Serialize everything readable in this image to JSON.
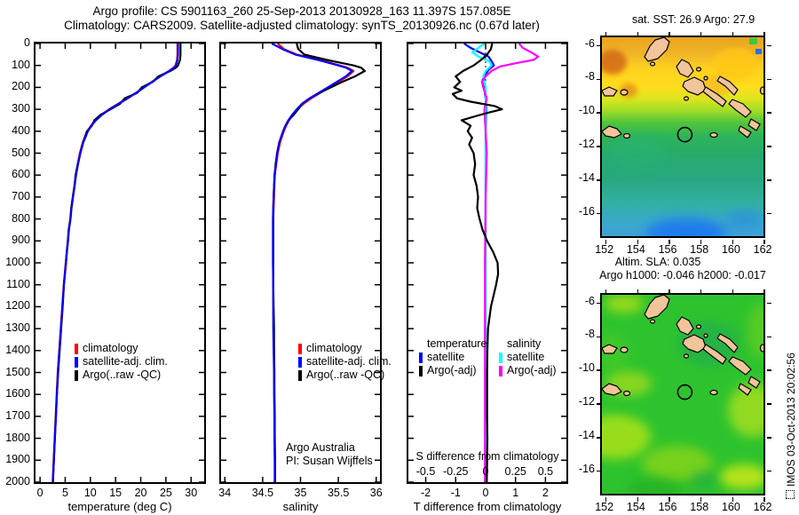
{
  "title": {
    "line1": "Argo profile: CS 5901163_260 25-Sep-2013 20130928_163 11.397S 157.085E",
    "line2": "Climatology: CARS2009. Satellite-adjusted climatology: synTS_20130926.nc (0.67d later)"
  },
  "watermark": "IMOS 03-Oct-2013 20:02:56",
  "colors": {
    "climatology": "#ff0000",
    "satellite_adjusted": "#0000ff",
    "argo_raw": "#000000",
    "satellite_salinity": "#00ffff",
    "argo_salinity_adj": "#ff00ff",
    "land": "#f2c49a"
  },
  "chart_data": {
    "type": "line",
    "panels": [
      {
        "id": "temperature-profile",
        "xlabel": "temperature (deg C)",
        "xlim": [
          -0.9,
          32.6
        ],
        "xticks": [
          0,
          5,
          10,
          15,
          20,
          25,
          30
        ],
        "ylim": [
          0,
          2000
        ],
        "yticks": [
          0,
          100,
          200,
          300,
          400,
          500,
          600,
          700,
          800,
          900,
          1000,
          1100,
          1200,
          1300,
          1400,
          1500,
          1600,
          1700,
          1800,
          1900,
          2000
        ],
        "show_ylabels": true,
        "depths": [
          0,
          25,
          50,
          75,
          100,
          110,
          125,
          150,
          175,
          200,
          225,
          250,
          275,
          300,
          325,
          350,
          375,
          400,
          450,
          500,
          550,
          600,
          650,
          700,
          750,
          800,
          850,
          900,
          950,
          1000,
          1100,
          1200,
          1300,
          1400,
          1500,
          1600,
          1700,
          1800,
          1900,
          2000
        ],
        "legends": [
          {
            "items": [
              {
                "label": "climatology",
                "color": "#ff0000"
              },
              {
                "label": "satellite-adj. clim.",
                "color": "#0000ff"
              },
              {
                "label": "Argo(..raw -QC)",
                "color": "#000000"
              }
            ]
          }
        ],
        "series": [
          {
            "name": "climatology",
            "color": "#ff0000",
            "values": [
              27.3,
              27.3,
              27.3,
              27.2,
              26.9,
              26.5,
              25.6,
              23.8,
              22.2,
              20.6,
              19.0,
              17.3,
              15.5,
              13.7,
              12.2,
              11.0,
              10.1,
              9.4,
              8.5,
              7.9,
              7.5,
              7.1,
              6.8,
              6.5,
              6.2,
              6.0,
              5.7,
              5.5,
              5.3,
              5.1,
              4.7,
              4.4,
              4.1,
              3.8,
              3.5,
              3.3,
              3.1,
              2.9,
              2.7,
              2.5
            ]
          },
          {
            "name": "Argo(..raw -QC)",
            "color": "#000000",
            "values": [
              27.9,
              27.9,
              27.9,
              27.8,
              27.4,
              27.0,
              25.9,
              23.5,
              22.4,
              20.2,
              19.3,
              16.8,
              15.9,
              14.0,
              12.0,
              10.8,
              10.3,
              9.3,
              8.55,
              8.0,
              7.5,
              7.05,
              6.85,
              6.5,
              6.2,
              6.05,
              5.7,
              5.55,
              5.3,
              5.15,
              4.75,
              4.5,
              4.2,
              3.9,
              3.6,
              3.35,
              3.15,
              2.95,
              2.75,
              2.55
            ]
          },
          {
            "name": "satellite-adj. clim.",
            "color": "#0000ff",
            "values": [
              27.4,
              27.4,
              27.4,
              27.3,
              27.0,
              26.6,
              25.7,
              23.9,
              22.3,
              20.7,
              19.1,
              17.4,
              15.6,
              13.8,
              12.3,
              11.1,
              10.2,
              9.5,
              8.6,
              8.0,
              7.55,
              7.15,
              6.85,
              6.55,
              6.25,
              6.05,
              5.75,
              5.55,
              5.35,
              5.15,
              4.75,
              4.45,
              4.15,
              3.85,
              3.55,
              3.35,
              3.15,
              2.95,
              2.75,
              2.55
            ]
          }
        ]
      },
      {
        "id": "salinity-profile",
        "xlabel": "salinity",
        "xlim": [
          33.95,
          36.05
        ],
        "xticks": [
          34,
          34.5,
          35,
          35.5,
          36
        ],
        "ylim": [
          0,
          2000
        ],
        "yticks": [
          0,
          100,
          200,
          300,
          400,
          500,
          600,
          700,
          800,
          900,
          1000,
          1100,
          1200,
          1300,
          1400,
          1500,
          1600,
          1700,
          1800,
          1900,
          2000
        ],
        "show_ylabels": false,
        "depths": [
          0,
          25,
          50,
          75,
          100,
          110,
          125,
          150,
          175,
          200,
          225,
          250,
          275,
          300,
          325,
          350,
          375,
          400,
          450,
          500,
          550,
          600,
          650,
          700,
          750,
          800,
          850,
          900,
          950,
          1000,
          1100,
          1200,
          1300,
          1400,
          1500,
          1600,
          1700,
          1800,
          1900,
          2000
        ],
        "annotation": [
          "Argo Australia",
          "PI: Susan Wijffels"
        ],
        "legends": [
          {
            "items": [
              {
                "label": "climatology",
                "color": "#ff0000"
              },
              {
                "label": "satellite-adj. clim.",
                "color": "#0000ff"
              },
              {
                "label": "Argo(..raw -QC)",
                "color": "#000000"
              }
            ]
          }
        ],
        "series": [
          {
            "name": "climatology",
            "color": "#ff0000",
            "values": [
              34.7,
              34.78,
              34.95,
              35.25,
              35.52,
              35.62,
              35.7,
              35.62,
              35.5,
              35.38,
              35.26,
              35.14,
              35.04,
              34.96,
              34.9,
              34.85,
              34.81,
              34.78,
              34.73,
              34.7,
              34.68,
              34.66,
              34.655,
              34.65,
              34.645,
              34.64,
              34.64,
              34.64,
              34.64,
              34.64,
              34.64,
              34.64,
              34.645,
              34.65,
              34.65,
              34.655,
              34.655,
              34.66,
              34.66,
              34.66
            ]
          },
          {
            "name": "Argo(..raw -QC)",
            "color": "#000000",
            "values": [
              34.95,
              34.97,
              35.05,
              35.35,
              35.7,
              35.8,
              35.85,
              35.72,
              35.55,
              35.4,
              35.25,
              35.12,
              35.02,
              34.97,
              34.91,
              34.84,
              34.8,
              34.77,
              34.72,
              34.69,
              34.67,
              34.66,
              34.65,
              34.645,
              34.64,
              34.64,
              34.64,
              34.64,
              34.64,
              34.64,
              34.64,
              34.645,
              34.65,
              34.65,
              34.655,
              34.655,
              34.66,
              34.66,
              34.665,
              34.665
            ]
          },
          {
            "name": "satellite-adj. clim.",
            "color": "#0000ff",
            "values": [
              34.62,
              34.76,
              34.93,
              35.23,
              35.5,
              35.6,
              35.68,
              35.6,
              35.48,
              35.36,
              35.24,
              35.12,
              35.02,
              34.95,
              34.89,
              34.84,
              34.8,
              34.77,
              34.72,
              34.69,
              34.675,
              34.655,
              34.65,
              34.645,
              34.64,
              34.635,
              34.635,
              34.635,
              34.635,
              34.635,
              34.64,
              34.64,
              34.64,
              34.645,
              34.65,
              34.65,
              34.655,
              34.655,
              34.66,
              34.66
            ]
          }
        ]
      },
      {
        "id": "difference-profile",
        "xlabel": "T difference from climatology",
        "xlabel2": "S difference from climatology",
        "xlim": [
          -2.58,
          2.7
        ],
        "xticks": [
          -2,
          -1,
          0,
          1,
          2
        ],
        "sticks": [
          -0.5,
          -0.25,
          0,
          0.25,
          0.5
        ],
        "s_scale": 4,
        "zero_line": true,
        "ylim": [
          0,
          2000
        ],
        "yticks": [
          0,
          100,
          200,
          300,
          400,
          500,
          600,
          700,
          800,
          900,
          1000,
          1100,
          1200,
          1300,
          1400,
          1500,
          1600,
          1700,
          1800,
          1900,
          2000
        ],
        "show_ylabels": false,
        "legends": [
          {
            "header": "temperature",
            "items": [
              {
                "label": "satellite",
                "color": "#0000ff"
              },
              {
                "label": "Argo(-adj)",
                "color": "#000000"
              }
            ]
          },
          {
            "header": "salinity",
            "items": [
              {
                "label": "satellite",
                "color": "#00ffff"
              },
              {
                "label": "Argo(-adj)",
                "color": "#ff00ff"
              }
            ]
          }
        ],
        "series": [
          {
            "name": "T satellite",
            "color": "#0000ff",
            "depths": [
              0,
              20,
              40,
              60,
              80,
              100,
              120,
              150,
              175,
              200,
              250,
              300,
              400,
              600,
              1000,
              1500,
              2000
            ],
            "values": [
              -0.72,
              -0.5,
              -0.2,
              0.1,
              0.2,
              0.28,
              0.1,
              -0.05,
              -0.12,
              -0.05,
              0.0,
              0.02,
              0.0,
              0.0,
              0.0,
              0.0,
              0.0
            ]
          },
          {
            "name": "S satellite",
            "color": "#00ffff",
            "scale": 4,
            "depths": [
              0,
              20,
              40,
              60,
              80,
              100,
              125,
              150,
              200,
              300,
              500,
              1000,
              1500,
              2000
            ],
            "values": [
              -0.01,
              -0.06,
              -0.11,
              -0.06,
              0.03,
              0.05,
              0.0,
              -0.02,
              0.0,
              0.0,
              0.0,
              0.0,
              0.0,
              0.0
            ]
          },
          {
            "name": "S Argo(-adj)",
            "color": "#ff00ff",
            "scale": 4,
            "depths": [
              0,
              20,
              40,
              60,
              75,
              90,
              105,
              125,
              150,
              175,
              200,
              250,
              300,
              400,
              500,
              700,
              1000,
              1500,
              2000
            ],
            "values": [
              0.28,
              0.31,
              0.38,
              0.44,
              0.4,
              0.25,
              0.12,
              0.05,
              0.0,
              -0.03,
              -0.02,
              0.01,
              -0.01,
              0.0,
              0.01,
              0.0,
              -0.005,
              -0.005,
              -0.005
            ]
          },
          {
            "name": "T Argo(-adj)",
            "color": "#000000",
            "depths": [
              0,
              25,
              50,
              75,
              100,
              125,
              150,
              175,
              200,
              215,
              230,
              250,
              265,
              285,
              300,
              315,
              330,
              350,
              375,
              400,
              430,
              460,
              500,
              550,
              600,
              650,
              700,
              750,
              800,
              850,
              900,
              950,
              1000,
              1050,
              1100,
              1200,
              1300,
              1400,
              1500,
              1600,
              1700,
              1800,
              1900,
              2000
            ],
            "values": [
              0.22,
              0.18,
              0.05,
              -0.15,
              -0.4,
              -0.75,
              -1.0,
              -0.85,
              -1.05,
              -0.8,
              -1.1,
              -0.95,
              -0.5,
              0.3,
              0.55,
              0.1,
              -0.3,
              -0.8,
              -0.5,
              -0.6,
              -0.45,
              -0.55,
              -0.4,
              -0.35,
              -0.4,
              -0.3,
              -0.25,
              -0.28,
              -0.2,
              -0.1,
              0.05,
              0.25,
              0.4,
              0.42,
              0.35,
              0.18,
              0.08,
              0.06,
              0.05,
              0.05,
              0.05,
              0.06,
              0.05,
              0.04
            ]
          }
        ]
      }
    ],
    "maps": [
      {
        "id": "sst-map",
        "title": "sat. SST: 26.9 Argo: 27.9",
        "xticks": [
          152,
          154,
          156,
          158,
          160,
          162
        ],
        "yticks": [
          -6,
          -8,
          -10,
          -12,
          -14,
          -16
        ],
        "lon_range": [
          151.85,
          162.05
        ],
        "lat_range": [
          -5.6,
          -17.45
        ],
        "float": {
          "lon": 157.085,
          "lat": -11.397
        }
      },
      {
        "id": "sla-map",
        "title1": "Altim. SLA: 0.035",
        "title2": "Argo h1000: -0.046 h2000: -0.017",
        "xticks": [
          152,
          154,
          156,
          158,
          160,
          162
        ],
        "yticks": [
          -6,
          -8,
          -10,
          -12,
          -14,
          -16
        ],
        "lon_range": [
          151.85,
          162.05
        ],
        "lat_range": [
          -5.6,
          -17.45
        ],
        "float": {
          "lon": 157.085,
          "lat": -11.397
        }
      }
    ]
  }
}
